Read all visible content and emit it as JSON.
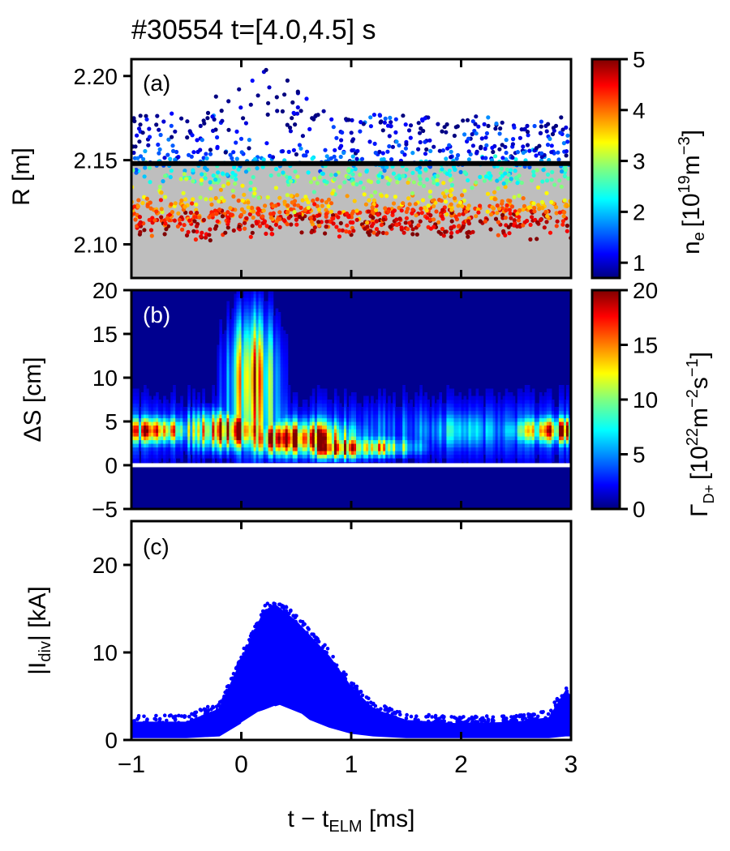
{
  "title": "#30554 t=[4.0,4.5] s",
  "chart_data": [
    {
      "panel_label": "(a)",
      "type": "scatter",
      "ylabel": "R [m]",
      "ylim": [
        2.08,
        2.21
      ],
      "xlim": [
        -1,
        3
      ],
      "yticks": [
        "2.10",
        "2.15",
        "2.20"
      ],
      "ytick_values": [
        2.1,
        2.15,
        2.2
      ],
      "separatrix_R": 2.148,
      "colorbar": {
        "label_base": "n",
        "label_sub": "e",
        "label_unit": "[10",
        "label_exp1": "19",
        "label_mid": "m",
        "label_exp2": "−3",
        "label_end": "]",
        "range": [
          0.7,
          5
        ],
        "ticks": [
          "1",
          "2",
          "3",
          "4",
          "5"
        ],
        "tick_values": [
          1,
          2,
          3,
          4,
          5
        ]
      },
      "density_by_depth": [
        {
          "R": 2.195,
          "ne": 0.7
        },
        {
          "R": 2.17,
          "ne": 0.9
        },
        {
          "R": 2.155,
          "ne": 1.3
        },
        {
          "R": 2.145,
          "ne": 2.1
        },
        {
          "R": 2.135,
          "ne": 2.9
        },
        {
          "R": 2.125,
          "ne": 3.8
        },
        {
          "R": 2.115,
          "ne": 4.5
        },
        {
          "R": 2.095,
          "ne": 5.0
        }
      ]
    },
    {
      "panel_label": "(b)",
      "type": "heatmap",
      "ylabel": "ΔS [cm]",
      "ylim": [
        -5,
        20
      ],
      "xlim": [
        -1,
        3
      ],
      "yticks": [
        "−5",
        "0",
        "5",
        "10",
        "15",
        "20"
      ],
      "ytick_values": [
        -5,
        0,
        5,
        10,
        15,
        20
      ],
      "strike_line_S": 0,
      "colorbar": {
        "label_base": "Γ",
        "label_sub": "D+",
        "label_unit": "[10",
        "label_exp1": "22",
        "label_mid": "m",
        "label_exp2": "−2",
        "label_mid2": "s",
        "label_exp3": "−1",
        "label_end": "]",
        "range": [
          0,
          20
        ],
        "ticks": [
          "0",
          "5",
          "10",
          "15",
          "20"
        ],
        "tick_values": [
          0,
          5,
          10,
          15,
          20
        ]
      },
      "flux_features": [
        {
          "t": -0.8,
          "S_peak": 4,
          "peak": 13,
          "width": 1.3
        },
        {
          "t": -0.1,
          "S_peak": 4,
          "peak": 16,
          "width": 2.0
        },
        {
          "t": 0.1,
          "S_peak": 10,
          "peak": 15,
          "width": 7.0
        },
        {
          "t": 0.5,
          "S_peak": 3,
          "peak": 18,
          "width": 1.8
        },
        {
          "t": 0.9,
          "S_peak": 2,
          "peak": 17,
          "width": 1.2
        },
        {
          "t": 1.2,
          "S_peak": 2,
          "peak": 12,
          "width": 1.0
        },
        {
          "t": 2.0,
          "S_peak": 4,
          "peak": 3,
          "width": 2.0
        },
        {
          "t": 2.9,
          "S_peak": 4,
          "peak": 13,
          "width": 1.3
        }
      ]
    },
    {
      "panel_label": "(c)",
      "type": "scatter",
      "xlabel_base": "t − t",
      "xlabel_sub": "ELM",
      "xlabel_unit": " [ms]",
      "ylabel_pre": "|I",
      "ylabel_sub": "div",
      "ylabel_post": "| [kA]",
      "ylim": [
        0,
        25
      ],
      "xlim": [
        -1,
        3
      ],
      "yticks": [
        "0",
        "10",
        "20"
      ],
      "ytick_values": [
        0,
        10,
        20
      ],
      "xticks": [
        "−1",
        "0",
        "1",
        "2",
        "3"
      ],
      "xtick_values": [
        -1,
        0,
        1,
        2,
        3
      ],
      "envelope": {
        "t": [
          -1.0,
          -0.5,
          -0.2,
          0.0,
          0.2,
          0.3,
          0.5,
          0.8,
          1.0,
          1.2,
          1.5,
          2.0,
          2.5,
          2.8,
          2.95,
          3.0
        ],
        "upper": [
          2.0,
          2.0,
          3.5,
          9.0,
          14.5,
          15.5,
          13.5,
          9.5,
          6.0,
          3.5,
          2.2,
          1.8,
          2.0,
          2.5,
          5.5,
          5.0
        ],
        "lower": [
          0.3,
          0.3,
          0.5,
          2.0,
          3.5,
          4.0,
          3.0,
          1.5,
          0.8,
          0.5,
          0.3,
          0.3,
          0.3,
          0.3,
          0.5,
          0.5
        ]
      }
    }
  ]
}
